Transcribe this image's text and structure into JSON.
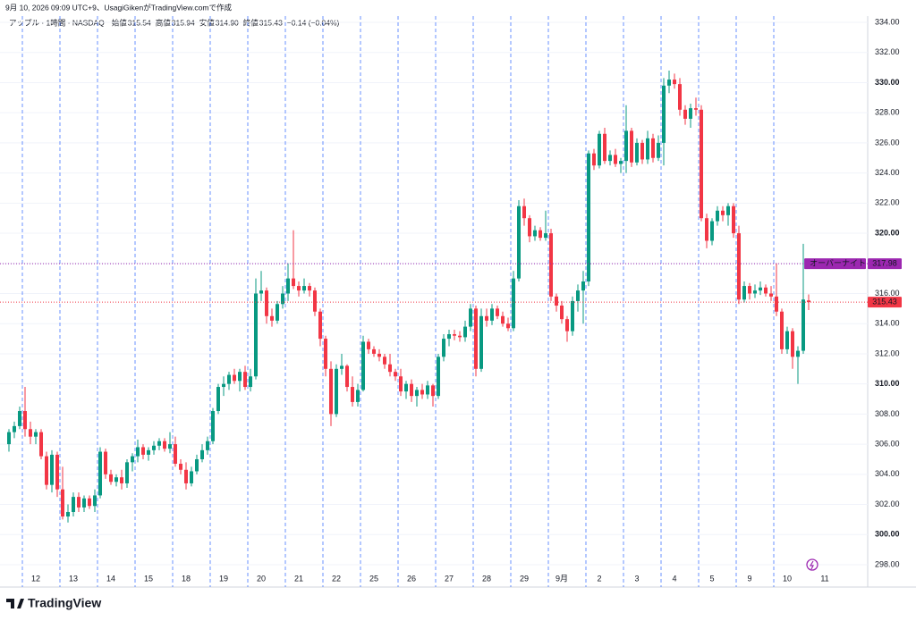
{
  "credit": "9月 10, 2026 09:09 UTC+9、UsagiGikenがTradingView.comで作成",
  "header": {
    "symbol": "アップル · 1時間 · NASDAQ",
    "open_label": "始値",
    "open": "315.54",
    "high_label": "高値",
    "high": "315.94",
    "low_label": "安値",
    "low": "314.90",
    "close_label": "終値",
    "close": "315.43",
    "change": "−0.14 (−0.04%)"
  },
  "brand": "TradingView",
  "chart_data": {
    "type": "candlestick",
    "up_color": "#089981",
    "down_color": "#f23645",
    "ylim": [
      298,
      334
    ],
    "yticks": [
      {
        "value": 298,
        "label": "298.00"
      },
      {
        "value": 300,
        "label": "300.00"
      },
      {
        "value": 302,
        "label": "302.00"
      },
      {
        "value": 304,
        "label": "304.00"
      },
      {
        "value": 306,
        "label": "306.00"
      },
      {
        "value": 308,
        "label": "308.00"
      },
      {
        "value": 310,
        "label": "310.00"
      },
      {
        "value": 312,
        "label": "312.00"
      },
      {
        "value": 314,
        "label": "314.00"
      },
      {
        "value": 316,
        "label": "316.00"
      },
      {
        "value": 318,
        "label": "318.00"
      },
      {
        "value": 320,
        "label": "320.00"
      },
      {
        "value": 322,
        "label": "322.00"
      },
      {
        "value": 324,
        "label": "324.00"
      },
      {
        "value": 326,
        "label": "326.00"
      },
      {
        "value": 328,
        "label": "328.00"
      },
      {
        "value": 330,
        "label": "330.00"
      },
      {
        "value": 332,
        "label": "332.00"
      },
      {
        "value": 334,
        "label": "334.00"
      }
    ],
    "overnight": {
      "label": "オーバーナイト",
      "value": 317.98,
      "color": "#9c27b0"
    },
    "last_price": {
      "value": 315.43,
      "color": "#f23645"
    },
    "days": [
      {
        "label": null,
        "candles": [
          [
            306,
            307,
            305.5,
            306.8
          ],
          [
            306.8,
            307.5,
            306.4,
            307.2
          ],
          [
            307.2,
            308.5,
            307,
            308.2
          ]
        ]
      },
      {
        "label": "12",
        "candles": [
          [
            308.2,
            309.8,
            306.5,
            307
          ],
          [
            307,
            307.5,
            306,
            306.5
          ],
          [
            306.5,
            307,
            306,
            306.8
          ],
          [
            306.8,
            307,
            305,
            305.2
          ],
          [
            305.2,
            305.5,
            303,
            303.3
          ],
          [
            303.3,
            305.6,
            302.8,
            305.3
          ],
          [
            305.3,
            305.5,
            302.5,
            303
          ]
        ]
      },
      {
        "label": "13",
        "candles": [
          [
            303,
            304.5,
            301,
            301.2
          ],
          [
            301.2,
            302,
            300.8,
            301.5
          ],
          [
            301.5,
            302.8,
            301.2,
            302.5
          ],
          [
            302.5,
            302.8,
            301.5,
            301.8
          ],
          [
            301.8,
            302.6,
            301.5,
            302.4
          ],
          [
            302.4,
            302.6,
            301.7,
            301.9
          ],
          [
            301.9,
            303,
            301.5,
            302.6
          ]
        ]
      },
      {
        "label": "14",
        "candles": [
          [
            302.6,
            305.8,
            302.4,
            305.5
          ],
          [
            305.5,
            305.7,
            303.7,
            304
          ],
          [
            304,
            304.3,
            303.3,
            303.5
          ],
          [
            303.5,
            304,
            303.2,
            303.8
          ],
          [
            303.8,
            304.3,
            303,
            303.4
          ],
          [
            303.4,
            305,
            303.1,
            304.8
          ],
          [
            304.8,
            305.4,
            304.2,
            305.2
          ]
        ]
      },
      {
        "label": "15",
        "candles": [
          [
            305.2,
            306.3,
            304.8,
            305.8
          ],
          [
            305.8,
            306,
            305,
            305.3
          ],
          [
            305.3,
            305.8,
            304.9,
            305.6
          ],
          [
            305.6,
            306.2,
            305.3,
            305.9
          ],
          [
            305.9,
            306.4,
            305.6,
            306.2
          ],
          [
            306.2,
            306.4,
            305.5,
            305.7
          ],
          [
            305.7,
            306.8,
            305.4,
            306
          ]
        ]
      },
      {
        "label": "18",
        "candles": [
          [
            306,
            306.5,
            304.5,
            304.7
          ],
          [
            304.7,
            305,
            304,
            304.3
          ],
          [
            304.3,
            304.8,
            303,
            303.4
          ],
          [
            303.4,
            304.5,
            303.2,
            304.2
          ],
          [
            304.2,
            305.3,
            304,
            305
          ],
          [
            305,
            306,
            304.8,
            305.6
          ],
          [
            305.6,
            306.5,
            305.3,
            306.2
          ]
        ]
      },
      {
        "label": "19",
        "candles": [
          [
            306.2,
            308.4,
            306,
            308.2
          ],
          [
            308.2,
            310,
            308,
            309.8
          ],
          [
            309.8,
            310.5,
            309.2,
            310
          ],
          [
            310,
            310.8,
            309.6,
            310.6
          ],
          [
            310.6,
            311,
            310,
            310.2
          ],
          [
            310.2,
            311,
            309.5,
            310.8
          ],
          [
            310.8,
            311.2,
            309.6,
            309.8
          ]
        ]
      },
      {
        "label": "20",
        "candles": [
          [
            309.8,
            311,
            309.5,
            310.5
          ],
          [
            310.5,
            317,
            310.3,
            316
          ],
          [
            316,
            317.5,
            315.5,
            316.2
          ],
          [
            316.2,
            316.4,
            314,
            314.5
          ],
          [
            314.5,
            315,
            313.8,
            314.2
          ],
          [
            314.2,
            315.5,
            314,
            315.3
          ],
          [
            315.3,
            316.5,
            315,
            316
          ]
        ]
      },
      {
        "label": "21",
        "candles": [
          [
            316,
            318,
            315.5,
            317
          ],
          [
            317,
            320.2,
            316.3,
            316.5
          ],
          [
            316.5,
            316.8,
            315.8,
            316.2
          ],
          [
            316.2,
            317,
            316,
            316.5
          ],
          [
            316.5,
            316.7,
            315.8,
            316.2
          ],
          [
            316.2,
            316.4,
            314.5,
            314.8
          ],
          [
            314.8,
            315,
            312.5,
            313
          ]
        ]
      },
      {
        "label": "22",
        "candles": [
          [
            313,
            313.2,
            310.5,
            311
          ],
          [
            311,
            311.5,
            307.2,
            308
          ],
          [
            308,
            311.3,
            307.8,
            311
          ],
          [
            311,
            312,
            310.6,
            311.2
          ],
          [
            311.2,
            311.3,
            309.5,
            309.8
          ],
          [
            309.8,
            310.5,
            308.5,
            308.8
          ],
          [
            308.8,
            310,
            308.5,
            309.6
          ]
        ]
      },
      {
        "label": "25",
        "candles": [
          [
            309.6,
            313.2,
            309.5,
            312.8
          ],
          [
            312.8,
            313,
            312,
            312.3
          ],
          [
            312.3,
            312.5,
            311.8,
            312
          ],
          [
            312,
            312.3,
            311.5,
            311.8
          ],
          [
            311.8,
            312,
            311,
            311.3
          ],
          [
            311.3,
            312,
            310.5,
            310.8
          ],
          [
            310.8,
            311,
            310.2,
            310.5
          ]
        ]
      },
      {
        "label": "26",
        "candles": [
          [
            310.5,
            311,
            309.2,
            309.5
          ],
          [
            309.5,
            310.2,
            309,
            310
          ],
          [
            310,
            310.3,
            308.8,
            309.2
          ],
          [
            309.2,
            309.8,
            308.5,
            309.6
          ],
          [
            309.6,
            310,
            309,
            309.3
          ],
          [
            309.3,
            310.2,
            309,
            309.9
          ],
          [
            309.9,
            310,
            308.5,
            309.2
          ]
        ]
      },
      {
        "label": "27",
        "candles": [
          [
            309.2,
            312,
            309,
            311.8
          ],
          [
            311.8,
            313.3,
            311.5,
            313
          ],
          [
            313,
            313.6,
            312.5,
            313.3
          ],
          [
            313.3,
            313.6,
            312.9,
            313.2
          ],
          [
            313.2,
            313.5,
            312.8,
            313.1
          ],
          [
            313.1,
            314.2,
            312.8,
            313.8
          ],
          [
            313.8,
            315.3,
            313.5,
            315
          ]
        ]
      },
      {
        "label": "28",
        "candles": [
          [
            315,
            315.2,
            310.5,
            311
          ],
          [
            311,
            315,
            310.8,
            314.5
          ],
          [
            314.5,
            315,
            313.8,
            314.2
          ],
          [
            314.2,
            315.3,
            313.9,
            315
          ],
          [
            315,
            315.2,
            314.3,
            314.5
          ],
          [
            314.5,
            314.8,
            313.8,
            314
          ],
          [
            314,
            314.4,
            313.5,
            313.7
          ]
        ]
      },
      {
        "label": "29",
        "candles": [
          [
            313.7,
            317.5,
            313.5,
            317
          ],
          [
            317,
            322.2,
            316.8,
            321.8
          ],
          [
            321.8,
            322.3,
            320.5,
            321
          ],
          [
            321,
            321.2,
            319.4,
            319.8
          ],
          [
            319.8,
            320.5,
            319.5,
            320.2
          ],
          [
            320.2,
            320.4,
            319.5,
            319.7
          ],
          [
            319.7,
            321.5,
            319.5,
            320
          ]
        ]
      },
      {
        "label": "9月",
        "candles": [
          [
            320,
            320.3,
            315.5,
            315.8
          ],
          [
            315.8,
            316,
            314.8,
            315.2
          ],
          [
            315.2,
            315.5,
            314,
            314.3
          ],
          [
            314.3,
            314.5,
            312.8,
            313.5
          ],
          [
            313.5,
            315.8,
            313.2,
            315.5
          ],
          [
            315.5,
            316.6,
            314.8,
            316.2
          ],
          [
            316.2,
            317.5,
            314,
            316.8
          ]
        ]
      },
      {
        "label": "2",
        "candles": [
          [
            316.8,
            325.5,
            316.5,
            325.3
          ],
          [
            325.3,
            325.6,
            324.2,
            324.5
          ],
          [
            324.5,
            326.8,
            324.3,
            326.6
          ],
          [
            326.6,
            327,
            324.6,
            324.8
          ],
          [
            324.8,
            325.5,
            324.5,
            325.2
          ],
          [
            325.2,
            325.6,
            324.4,
            324.6
          ],
          [
            324.6,
            325,
            324,
            324.8
          ]
        ]
      },
      {
        "label": "3",
        "candles": [
          [
            324.8,
            328.5,
            324,
            326.8
          ],
          [
            326.8,
            327,
            324.4,
            324.7
          ],
          [
            324.7,
            326.3,
            324.5,
            326
          ],
          [
            326,
            326.2,
            324.6,
            324.9
          ],
          [
            324.9,
            326.8,
            324.6,
            326.3
          ],
          [
            326.3,
            326.6,
            324.7,
            325
          ],
          [
            325,
            326.5,
            324.8,
            326
          ]
        ]
      },
      {
        "label": "4",
        "candles": [
          [
            326,
            330.3,
            324.5,
            329.8
          ],
          [
            329.8,
            330.8,
            329.3,
            330.2
          ],
          [
            330.2,
            330.6,
            329.6,
            329.9
          ],
          [
            329.9,
            330.3,
            327.8,
            328.2
          ],
          [
            328.2,
            328.5,
            327.2,
            327.6
          ],
          [
            327.6,
            328.6,
            327,
            328.3
          ],
          [
            328.3,
            329,
            327.8,
            328.2
          ]
        ]
      },
      {
        "label": "5",
        "candles": [
          [
            328.2,
            328.5,
            320.8,
            321
          ],
          [
            321,
            321.3,
            319,
            319.5
          ],
          [
            319.5,
            321,
            319.2,
            320.8
          ],
          [
            320.8,
            321.8,
            320.5,
            321.5
          ],
          [
            321.5,
            321.8,
            320.8,
            321.2
          ],
          [
            321.2,
            322,
            320.5,
            321.8
          ],
          [
            321.8,
            322,
            319.7,
            320
          ]
        ]
      },
      {
        "label": "9",
        "candles": [
          [
            320,
            320.5,
            315.3,
            315.6
          ],
          [
            315.6,
            316.8,
            315.4,
            316.5
          ],
          [
            316.5,
            316.7,
            315.6,
            316
          ],
          [
            316,
            316.6,
            315.7,
            316.2
          ],
          [
            316.2,
            316.8,
            315.9,
            316.4
          ],
          [
            316.4,
            316.6,
            315.8,
            316
          ],
          [
            316,
            316.5,
            315.5,
            315.8
          ]
        ]
      },
      {
        "label": "10",
        "candles": [
          [
            315.8,
            318,
            314.5,
            314.8
          ],
          [
            314.8,
            315,
            312,
            312.3
          ],
          [
            312.3,
            313.8,
            312,
            313.5
          ],
          [
            313.5,
            313.7,
            311,
            311.8
          ],
          [
            311.8,
            312.5,
            310,
            312.2
          ],
          [
            312.2,
            319.3,
            312,
            315.6
          ],
          [
            315.54,
            315.94,
            314.9,
            315.43
          ]
        ]
      },
      {
        "label": "11",
        "candles": []
      }
    ]
  }
}
